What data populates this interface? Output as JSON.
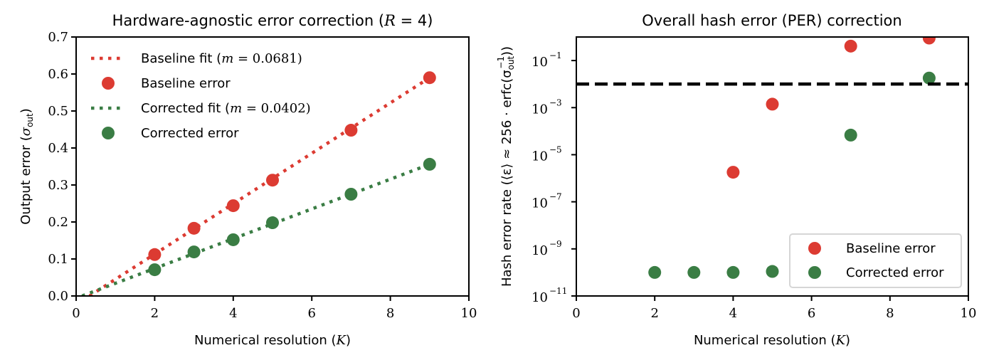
{
  "chart_data": [
    {
      "type": "scatter",
      "title": "Hardware-agnostic error correction (R = 4)",
      "xlabel": "Numerical resolution (K)",
      "ylabel": "Output error (σ_out)",
      "xlim": [
        0,
        10
      ],
      "ylim": [
        0,
        0.7
      ],
      "xticks": [
        0,
        2,
        4,
        6,
        8,
        10
      ],
      "yticks": [
        0.0,
        0.1,
        0.2,
        0.3,
        0.4,
        0.5,
        0.6,
        0.7
      ],
      "ytick_labels": [
        "0.0",
        "0.1",
        "0.2",
        "0.3",
        "0.4",
        "0.5",
        "0.6",
        "0.7"
      ],
      "grid": false,
      "legend_position": "top-left",
      "series": [
        {
          "name": "Baseline fit (m = 0.0681)",
          "kind": "line",
          "style": "dotted",
          "color": "#dc3b32",
          "slope": 0.0681,
          "intercept": -0.023,
          "x_range": [
            0.34,
            9
          ]
        },
        {
          "name": "Baseline error",
          "kind": "scatter",
          "color": "#dc3b32",
          "x": [
            2,
            3,
            4,
            5,
            7,
            9
          ],
          "y": [
            0.112,
            0.183,
            0.244,
            0.313,
            0.448,
            0.59
          ]
        },
        {
          "name": "Corrected fit (m = 0.0402)",
          "kind": "line",
          "style": "dotted",
          "color": "#3a7d44",
          "slope": 0.0402,
          "intercept": -0.006,
          "x_range": [
            0.15,
            9
          ]
        },
        {
          "name": "Corrected error",
          "kind": "scatter",
          "color": "#3a7d44",
          "x": [
            2,
            3,
            4,
            5,
            7,
            9
          ],
          "y": [
            0.071,
            0.119,
            0.152,
            0.198,
            0.275,
            0.356
          ]
        }
      ]
    },
    {
      "type": "scatter",
      "title": "Overall hash error (PER) correction",
      "xlabel": "Numerical resolution (K)",
      "ylabel": "Hash error rate (⟨ε⟩ ≈ 256 · erfc(σ_out⁻¹))",
      "xlim": [
        0,
        10
      ],
      "ylim": [
        1e-11,
        1.0
      ],
      "yscale": "log",
      "xticks": [
        0,
        2,
        4,
        6,
        8,
        10
      ],
      "yticks_exp": [
        -1,
        -3,
        -5,
        -7,
        -9,
        -11
      ],
      "grid": false,
      "legend_position": "bottom-right",
      "threshold_line": {
        "y": 0.01,
        "style": "dashed",
        "color": "#000000"
      },
      "series": [
        {
          "name": "Baseline error",
          "kind": "scatter",
          "color": "#dc3b32",
          "x": [
            4,
            5,
            7,
            9
          ],
          "y": [
            1.8e-06,
            0.0014,
            0.41,
            0.9
          ]
        },
        {
          "name": "Corrected error",
          "kind": "scatter",
          "color": "#3a7d44",
          "x": [
            2,
            3,
            4,
            5,
            7,
            9
          ],
          "y": [
            1e-10,
            1e-10,
            1e-10,
            1.1e-10,
            6.8e-05,
            0.018
          ]
        }
      ]
    }
  ],
  "labels": {
    "left_title_text": "Hardware-agnostic error correction (",
    "left_title_var": "R",
    "left_title_tail": " = 4)",
    "left_ylabel_text": "Output error (",
    "left_ylabel_var": "σ",
    "left_ylabel_sub": "out",
    "left_ylabel_tail": ")",
    "xlabel_text": "Numerical resolution (",
    "xlabel_var": "K",
    "xlabel_tail": ")",
    "right_title": "Overall hash error (PER) correction",
    "right_ylabel_text": "Hash error rate (⟨ε⟩ ≈ 256 · erfc(σ",
    "right_ylabel_sub": "out",
    "right_ylabel_sup": "−1",
    "right_ylabel_tail": "))",
    "left_legend": [
      {
        "text": "Baseline fit (",
        "var": "m",
        "tail": " = 0.0681)"
      },
      {
        "text": "Baseline error",
        "var": "",
        "tail": ""
      },
      {
        "text": "Corrected fit (",
        "var": "m",
        "tail": " = 0.0402)"
      },
      {
        "text": "Corrected error",
        "var": "",
        "tail": ""
      }
    ],
    "right_legend": [
      "Baseline error",
      "Corrected error"
    ]
  }
}
